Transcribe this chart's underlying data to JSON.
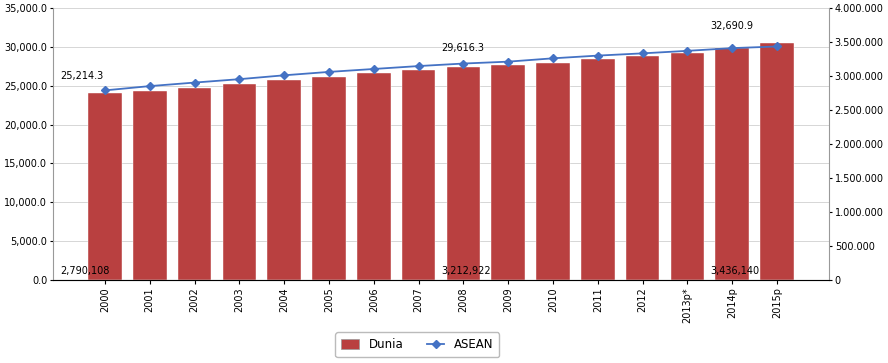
{
  "years": [
    "2000",
    "2001",
    "2002",
    "2003",
    "2004",
    "2005",
    "2006",
    "2007",
    "2008",
    "2009",
    "2010",
    "2011",
    "2012",
    "2013p*",
    "2014p",
    "2015p"
  ],
  "dunia": [
    24050,
    24350,
    24750,
    25200,
    25700,
    26100,
    26600,
    27050,
    27450,
    27700,
    27950,
    28450,
    28850,
    29250,
    29850,
    30550
  ],
  "asean": [
    2790108,
    2853000,
    2905000,
    2955000,
    3012000,
    3062000,
    3105000,
    3148000,
    3185000,
    3212922,
    3262000,
    3302000,
    3335000,
    3372000,
    3412000,
    3436140
  ],
  "bar_color": "#b94040",
  "line_color": "#4472c4",
  "bar_edge_color": "#c0504d",
  "left_ylim": [
    0,
    35000
  ],
  "right_ylim": [
    0,
    4000000
  ],
  "left_yticks": [
    0.0,
    5000.0,
    10000.0,
    15000.0,
    20000.0,
    25000.0,
    30000.0,
    35000.0
  ],
  "right_yticks": [
    0,
    500000,
    1000000,
    1500000,
    2000000,
    2500000,
    3000000,
    3500000,
    4000000
  ],
  "annotation_dunia_2000": "2,790,108",
  "annotation_dunia_2009": "3,212,922",
  "annotation_dunia_2015": "3,436,140",
  "annotation_asean_2000": "25,214.3",
  "annotation_asean_2009": "29,616.3",
  "annotation_asean_2015": "32,690.9",
  "legend_labels": [
    "Dunia",
    "ASEAN"
  ],
  "background_color": "#ffffff",
  "grid_color": "#d0d0d0",
  "fig_width": 8.88,
  "fig_height": 3.63
}
